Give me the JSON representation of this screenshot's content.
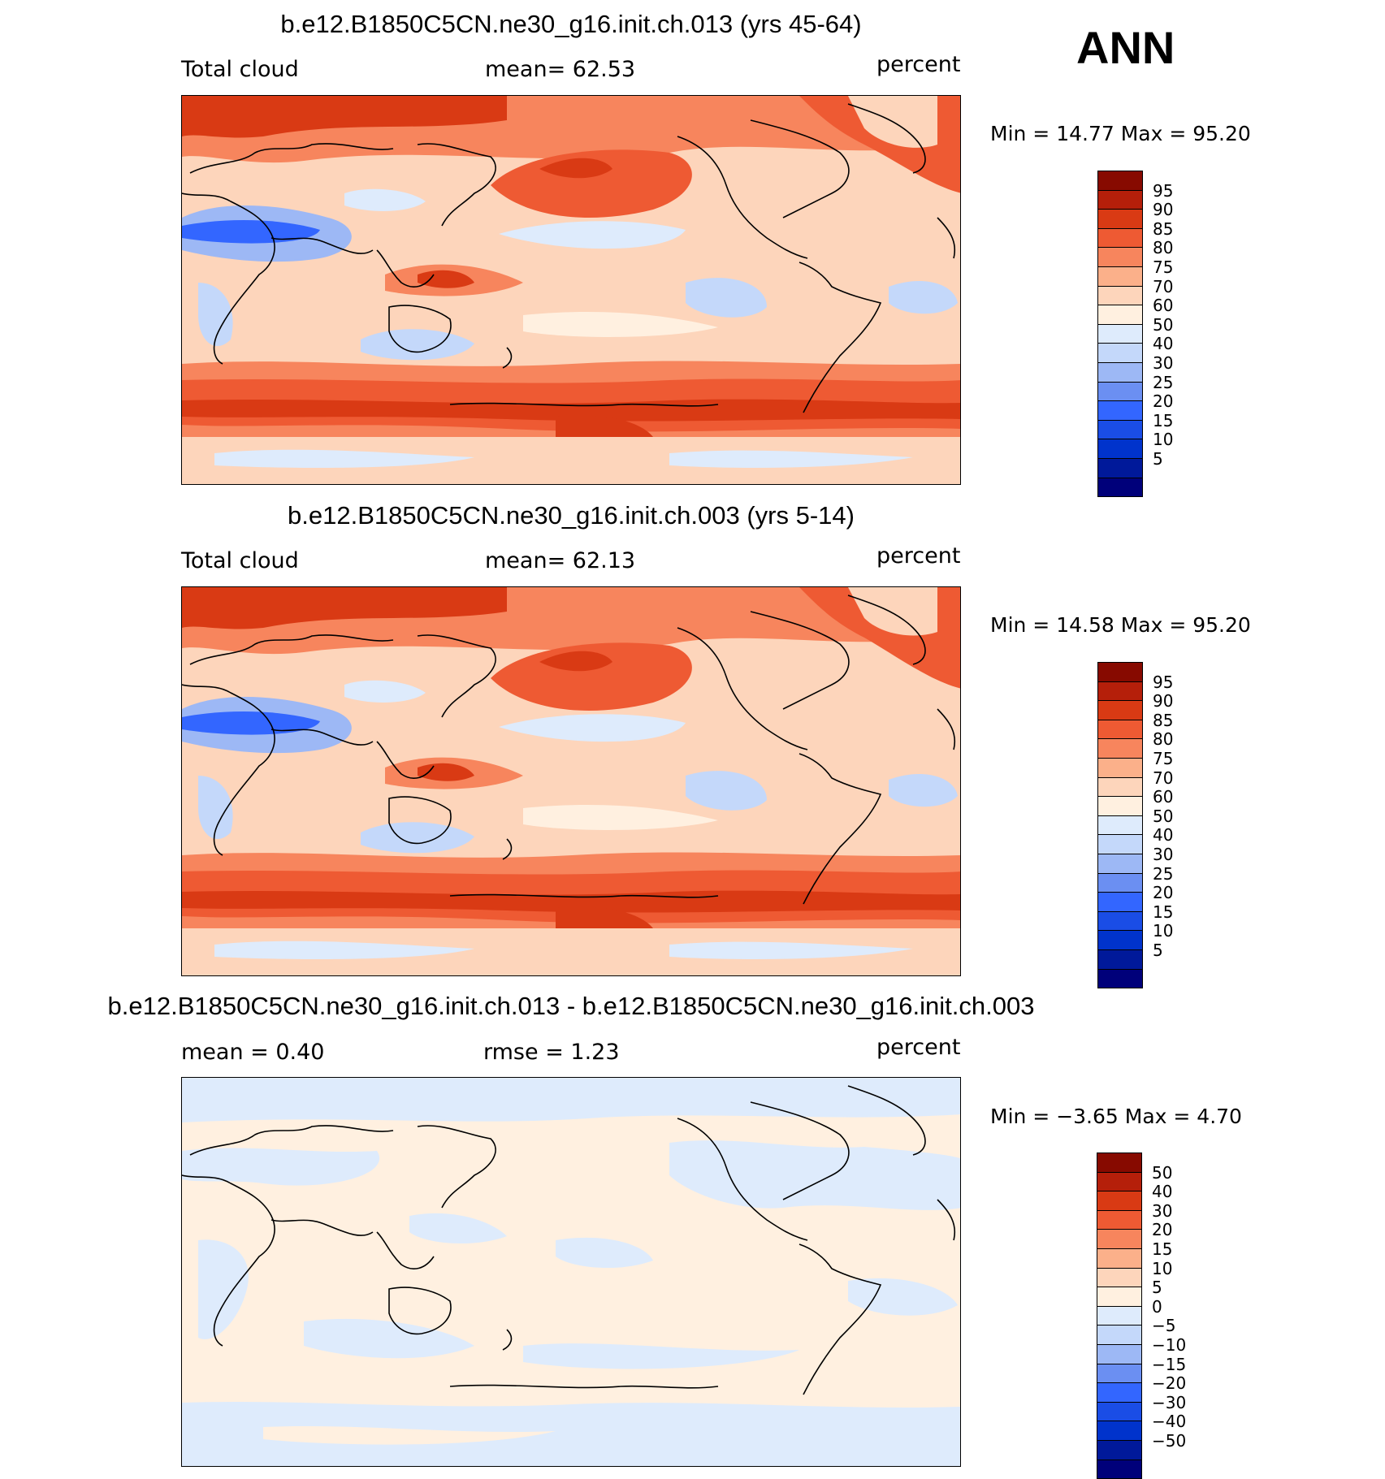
{
  "season": "ANN",
  "colors": {
    "abs_scale": [
      "#00007a",
      "#00199a",
      "#0033cc",
      "#1a4de6",
      "#3366ff",
      "#6b8ff2",
      "#9db8f5",
      "#c4d8fa",
      "#deebfc",
      "#fff0e0",
      "#fdd5bb",
      "#fbb08a",
      "#f7855d",
      "#ee5a33",
      "#d93a14",
      "#b51f0a",
      "#870a00"
    ],
    "diff_scale": [
      "#00007a",
      "#00199a",
      "#0033cc",
      "#1a4de6",
      "#3366ff",
      "#6b8ff2",
      "#9db8f5",
      "#c4d8fa",
      "#deebfc",
      "#fff0e0",
      "#fdd5bb",
      "#fbb08a",
      "#f7855d",
      "#ee5a33",
      "#d93a14",
      "#b51f0a",
      "#870a00"
    ]
  },
  "panels": [
    {
      "title": "b.e12.B1850C5CN.ne30_g16.init.ch.013 (yrs 45-64)",
      "left_label": "Total cloud",
      "mid_label": "mean=   62.53",
      "units": "percent",
      "minmax": "Min =    14.77  Max =    95.20",
      "colorbar_labels": [
        "95",
        "90",
        "85",
        "80",
        "75",
        "70",
        "60",
        "50",
        "40",
        "30",
        "25",
        "20",
        "15",
        "10",
        "5"
      ]
    },
    {
      "title": "b.e12.B1850C5CN.ne30_g16.init.ch.003 (yrs 5-14)",
      "left_label": "Total cloud",
      "mid_label": "mean=   62.13",
      "units": "percent",
      "minmax": "Min =    14.58  Max =    95.20",
      "colorbar_labels": [
        "95",
        "90",
        "85",
        "80",
        "75",
        "70",
        "60",
        "50",
        "40",
        "30",
        "25",
        "20",
        "15",
        "10",
        "5"
      ]
    },
    {
      "title": "b.e12.B1850C5CN.ne30_g16.init.ch.013 - b.e12.B1850C5CN.ne30_g16.init.ch.003",
      "left_label": "mean =     0.40",
      "mid_label": "rmse =     1.23",
      "units": "percent",
      "minmax": "Min =   −3.65  Max =     4.70",
      "colorbar_labels": [
        "50",
        "40",
        "30",
        "20",
        "15",
        "10",
        "5",
        "0",
        "−5",
        "−10",
        "−15",
        "−20",
        "−30",
        "−40",
        "−50"
      ]
    }
  ]
}
